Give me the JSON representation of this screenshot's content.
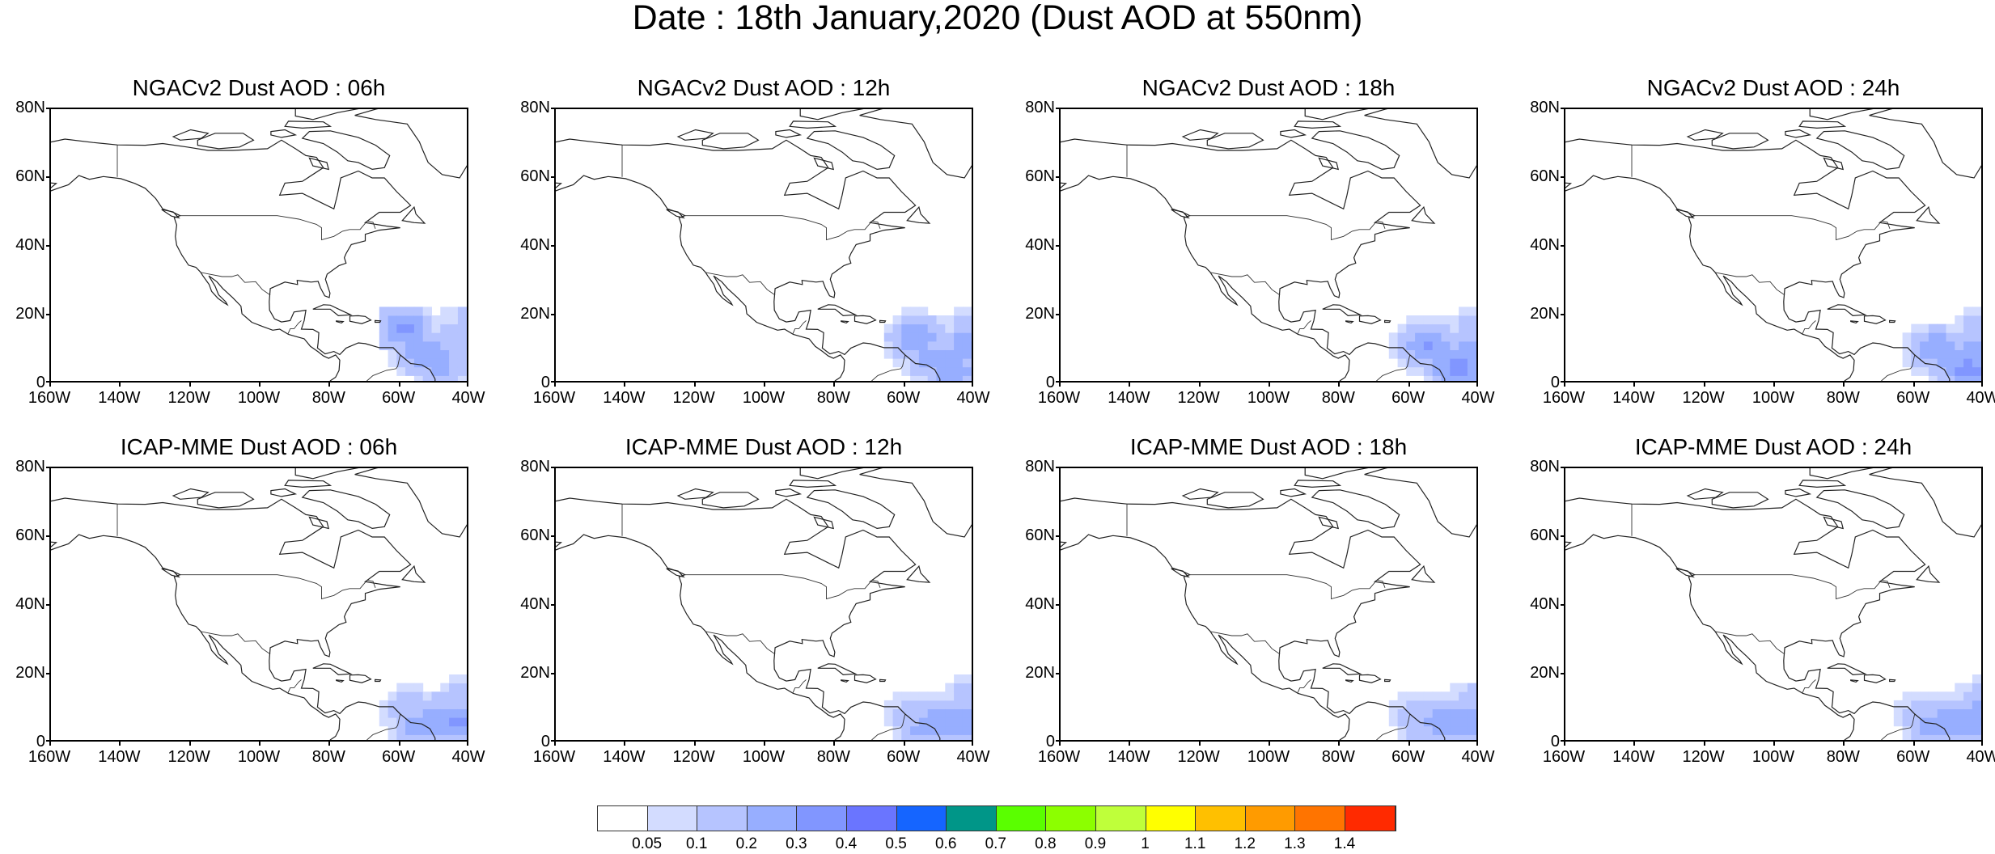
{
  "title": "Date : 18th January,2020 (Dust AOD at 550nm)",
  "panels": [
    {
      "title": "NGACv2 Dust AOD : 06h",
      "row": 0,
      "col": 0,
      "dust": [
        [
          60,
          15,
          0.35
        ],
        [
          55,
          8,
          0.3
        ],
        [
          45,
          12,
          0.2
        ],
        [
          42,
          18,
          0.12
        ],
        [
          50,
          5,
          0.25
        ]
      ]
    },
    {
      "title": "NGACv2 Dust AOD : 12h",
      "row": 0,
      "col": 1,
      "dust": [
        [
          58,
          12,
          0.3
        ],
        [
          52,
          6,
          0.28
        ],
        [
          44,
          10,
          0.25
        ],
        [
          42,
          16,
          0.15
        ],
        [
          48,
          3,
          0.3
        ]
      ]
    },
    {
      "title": "NGACv2 Dust AOD : 18h",
      "row": 0,
      "col": 2,
      "dust": [
        [
          56,
          10,
          0.32
        ],
        [
          50,
          5,
          0.3
        ],
        [
          44,
          8,
          0.28
        ],
        [
          42,
          14,
          0.18
        ],
        [
          47,
          3,
          0.35
        ]
      ]
    },
    {
      "title": "NGACv2 Dust AOD : 24h",
      "row": 0,
      "col": 3,
      "dust": [
        [
          55,
          9,
          0.3
        ],
        [
          50,
          5,
          0.28
        ],
        [
          44,
          7,
          0.3
        ],
        [
          42,
          14,
          0.18
        ],
        [
          46,
          3,
          0.35
        ]
      ]
    },
    {
      "title": "ICAP-MME Dust AOD : 06h",
      "row": 1,
      "col": 0,
      "dust": [
        [
          58,
          8,
          0.2
        ],
        [
          50,
          6,
          0.3
        ],
        [
          44,
          5,
          0.35
        ],
        [
          42,
          12,
          0.18
        ],
        [
          56,
          3,
          0.25
        ]
      ]
    },
    {
      "title": "ICAP-MME Dust AOD : 12h",
      "row": 1,
      "col": 1,
      "dust": [
        [
          58,
          7,
          0.2
        ],
        [
          50,
          5,
          0.3
        ],
        [
          44,
          5,
          0.3
        ],
        [
          42,
          11,
          0.2
        ],
        [
          55,
          3,
          0.25
        ]
      ]
    },
    {
      "title": "ICAP-MME Dust AOD : 18h",
      "row": 1,
      "col": 2,
      "dust": [
        [
          58,
          7,
          0.2
        ],
        [
          52,
          5,
          0.3
        ],
        [
          45,
          4,
          0.3
        ],
        [
          42,
          10,
          0.2
        ],
        [
          56,
          3,
          0.2
        ]
      ]
    },
    {
      "title": "ICAP-MME Dust AOD : 24h",
      "row": 1,
      "col": 3,
      "dust": [
        [
          58,
          7,
          0.2
        ],
        [
          52,
          5,
          0.25
        ],
        [
          45,
          5,
          0.3
        ],
        [
          42,
          10,
          0.22
        ],
        [
          56,
          3,
          0.25
        ]
      ]
    }
  ],
  "map_extent": {
    "lon_min": -160,
    "lon_max": -40,
    "lat_min": 0,
    "lat_max": 80
  },
  "lat_ticks": [
    0,
    20,
    40,
    60,
    80
  ],
  "lat_tick_labels": [
    "0",
    "20N",
    "40N",
    "60N",
    "80N"
  ],
  "lon_ticks": [
    -160,
    -140,
    -120,
    -100,
    -80,
    -60,
    -40
  ],
  "lon_tick_labels": [
    "160W",
    "140W",
    "120W",
    "100W",
    "80W",
    "60W",
    "40W"
  ],
  "colorbar": {
    "colors": [
      "#ffffff",
      "#d3dcff",
      "#b6c4ff",
      "#97aeff",
      "#8196ff",
      "#6a75ff",
      "#1565ff",
      "#009688",
      "#5aff00",
      "#8cff00",
      "#bfff3a",
      "#ffff00",
      "#ffc000",
      "#ff9b00",
      "#ff7400",
      "#ff2a00"
    ],
    "labels": [
      "0.05",
      "0.1",
      "0.2",
      "0.3",
      "0.4",
      "0.5",
      "0.6",
      "0.7",
      "0.8",
      "0.9",
      "1",
      "1.1",
      "1.2",
      "1.3",
      "1.4"
    ]
  }
}
